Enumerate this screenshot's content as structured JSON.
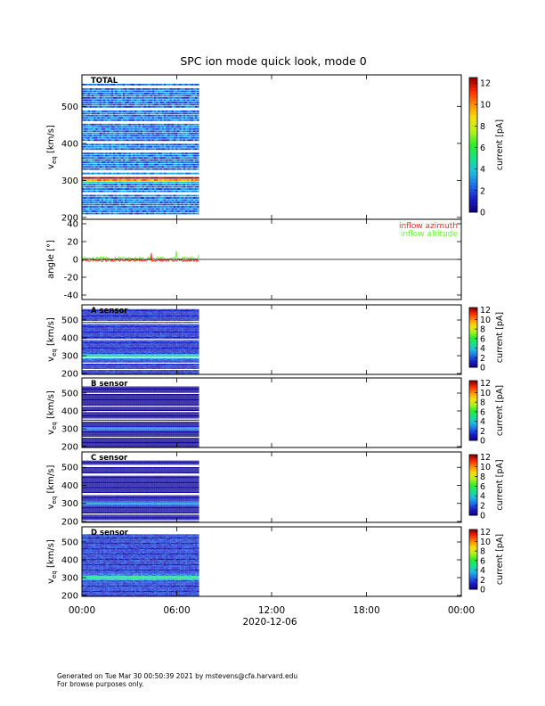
{
  "title": "SPC ion mode quick look, mode 0",
  "footer": {
    "line1": "Generated on Tue Mar 30 00:50:39 2021 by mstevens@cfa.harvard.edu",
    "line2": "For browse purposes only."
  },
  "chart_data": {
    "type": "heatmap",
    "xaxis": {
      "tick_labels": [
        "00:00",
        "06:00",
        "12:00",
        "18:00",
        "00:00"
      ],
      "tick_hours": [
        0,
        6,
        12,
        18,
        24
      ],
      "xlim_hours": [
        0,
        24
      ],
      "date_label": "2020-12-06",
      "data_end_hour": 7.4
    },
    "panels": [
      {
        "name": "TOTAL",
        "kind": "spectrogram",
        "ylabel": "v",
        "ylabel_sub": "eq",
        "ylabel_unit": "[km/s]",
        "ylim": [
          195,
          585
        ],
        "yticks": [
          200,
          300,
          400,
          500
        ],
        "vmax_data": 560,
        "colorbar": {
          "label": "current [pA]",
          "ticks": [
            0,
            2,
            4,
            6,
            8,
            10,
            12
          ],
          "range": [
            0,
            12.5
          ]
        },
        "background_level": 2.6,
        "peak_speed": 305,
        "peak_level": 10.5,
        "peak_width": 8
      },
      {
        "name": "angle",
        "kind": "line",
        "ylabel": "angle [°]",
        "ylim": [
          -45,
          45
        ],
        "yticks": [
          -40,
          -20,
          0,
          20,
          40
        ],
        "legend": [
          {
            "label": "inflow azimuth",
            "color": "#ff2a2a"
          },
          {
            "label": "inflow altitude",
            "color": "#6cf03c"
          }
        ]
      },
      {
        "name": "A sensor",
        "kind": "spectrogram",
        "ylabel": "v",
        "ylabel_sub": "eq",
        "ylabel_unit": "[km/s]",
        "ylim": [
          195,
          585
        ],
        "yticks": [
          200,
          300,
          400,
          500
        ],
        "vmax_data": 560,
        "colorbar": {
          "label": "current [pA]",
          "ticks": [
            0,
            2,
            4,
            6,
            8,
            10,
            12
          ],
          "range": [
            0,
            12.5
          ]
        },
        "background_level": 1.4,
        "peak_speed": 295,
        "peak_level": 3.4,
        "peak_width": 14
      },
      {
        "name": "B sensor",
        "kind": "spectrogram",
        "ylabel": "v",
        "ylabel_sub": "eq",
        "ylabel_unit": "[km/s]",
        "ylim": [
          195,
          585
        ],
        "yticks": [
          200,
          300,
          400,
          500
        ],
        "vmax_data": 540,
        "colorbar": {
          "label": "current [pA]",
          "ticks": [
            0,
            2,
            4,
            6,
            8,
            10,
            12
          ],
          "range": [
            0,
            12.5
          ]
        },
        "background_level": 0.35,
        "peak_speed": 300,
        "peak_level": 2.6,
        "peak_width": 12
      },
      {
        "name": "C sensor",
        "kind": "spectrogram",
        "ylabel": "v",
        "ylabel_sub": "eq",
        "ylabel_unit": "[km/s]",
        "ylim": [
          195,
          585
        ],
        "yticks": [
          200,
          300,
          400,
          500
        ],
        "vmax_data": 540,
        "colorbar": {
          "label": "current [pA]",
          "ticks": [
            0,
            2,
            4,
            6,
            8,
            10,
            12
          ],
          "range": [
            0,
            12.5
          ]
        },
        "background_level": 0.6,
        "peak_speed": 300,
        "peak_level": 2.8,
        "peak_width": 12
      },
      {
        "name": "D sensor",
        "kind": "spectrogram",
        "ylabel": "v",
        "ylabel_sub": "eq",
        "ylabel_unit": "[km/s]",
        "ylim": [
          195,
          585
        ],
        "yticks": [
          200,
          300,
          400,
          500
        ],
        "vmax_data": 545,
        "colorbar": {
          "label": "current [pA]",
          "ticks": [
            0,
            2,
            4,
            6,
            8,
            10,
            12
          ],
          "range": [
            0,
            12.5
          ]
        },
        "background_level": 1.6,
        "peak_speed": 300,
        "peak_level": 3.6,
        "peak_width": 14
      }
    ]
  }
}
